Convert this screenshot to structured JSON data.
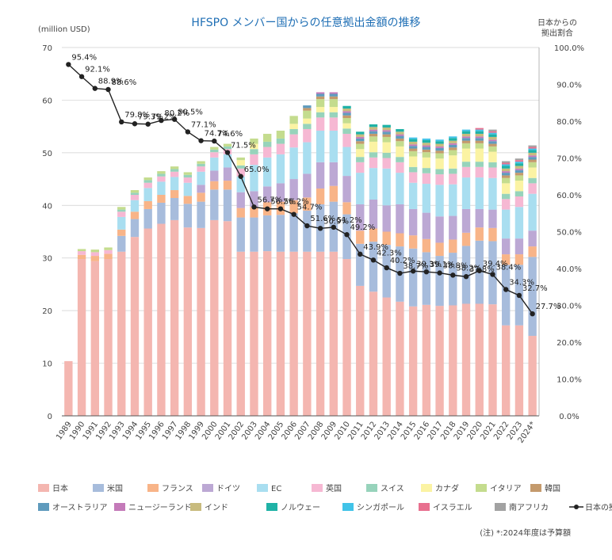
{
  "chart_data": {
    "type": "bar",
    "title": "HFSPO メンバー国からの任意拠出金額の推移",
    "ylabel_left": "(million USD)",
    "ylabel_right_line1": "日本からの",
    "ylabel_right_line2": "拠出割合",
    "ylim": [
      0,
      70
    ],
    "y2lim": [
      0,
      100
    ],
    "yticks": [
      "0",
      "10",
      "20",
      "30",
      "40",
      "50",
      "60",
      "70"
    ],
    "y2ticks": [
      "0.0%",
      "10.0%",
      "20.0%",
      "30.0%",
      "40.0%",
      "50.0%",
      "60.0%",
      "70.0%",
      "80.0%",
      "90.0%",
      "100.0%"
    ],
    "grid": true,
    "legend_position": "bottom",
    "categories": [
      "1989",
      "1990",
      "1991",
      "1992",
      "1993",
      "1994",
      "1995",
      "1996",
      "1997",
      "1998",
      "1999",
      "2000",
      "2001",
      "2002",
      "2003",
      "2004",
      "2005",
      "2006",
      "2007",
      "2008",
      "2009",
      "2010",
      "2011",
      "2012",
      "2013",
      "2014",
      "2015",
      "2016",
      "2017",
      "2018",
      "2019",
      "2020",
      "2021",
      "2022",
      "2023",
      "2024*"
    ],
    "series": [
      {
        "name": "日本",
        "color": "#f4b6b0",
        "values": [
          10.4,
          29.8,
          29.4,
          29.8,
          31.2,
          34.0,
          35.6,
          36.5,
          37.2,
          35.8,
          35.7,
          37.2,
          37.0,
          31.2,
          31.2,
          31.3,
          31.2,
          31.2,
          31.2,
          31.2,
          31.2,
          29.8,
          24.7,
          23.6,
          22.5,
          21.7,
          20.8,
          21.1,
          20.9,
          21.0,
          21.3,
          21.3,
          21.2,
          17.2,
          17.2,
          15.2
        ]
      },
      {
        "name": "米国",
        "color": "#a7bcdc",
        "values": [
          0,
          0,
          0,
          0,
          3.0,
          3.4,
          3.7,
          4.0,
          4.2,
          4.5,
          5.0,
          5.8,
          6.0,
          6.5,
          6.5,
          6.8,
          7.0,
          7.3,
          7.8,
          9.0,
          9.5,
          8.5,
          8.0,
          9.5,
          10.0,
          10.5,
          11.0,
          10.0,
          9.5,
          10.0,
          11.0,
          12.0,
          12.0,
          11.5,
          11.5,
          15.0
        ]
      },
      {
        "name": "フランス",
        "color": "#f8b488",
        "values": [
          0,
          0.8,
          1.0,
          1.0,
          1.2,
          1.4,
          1.5,
          1.5,
          1.5,
          1.5,
          1.7,
          1.6,
          1.7,
          1.8,
          2.0,
          2.5,
          2.5,
          2.5,
          2.5,
          3.0,
          3.0,
          2.3,
          2.5,
          2.5,
          2.5,
          2.5,
          2.5,
          2.5,
          2.5,
          2.5,
          2.5,
          2.5,
          2.5,
          2.0,
          2.0,
          2.0
        ]
      },
      {
        "name": "ドイツ",
        "color": "#bca8d4",
        "values": [
          0,
          0,
          0,
          0,
          0,
          0,
          0,
          0,
          0,
          0,
          1.5,
          2.0,
          2.5,
          3.0,
          3.0,
          3.0,
          3.5,
          4.0,
          4.5,
          5.0,
          4.5,
          5.0,
          5.0,
          5.5,
          5.0,
          5.5,
          5.0,
          5.0,
          5.0,
          4.5,
          4.5,
          3.5,
          3.5,
          3.0,
          3.0,
          3.0
        ]
      },
      {
        "name": "EC",
        "color": "#a9def0",
        "values": [
          0,
          0,
          0,
          0,
          2.4,
          2.2,
          2.5,
          2.5,
          2.5,
          2.5,
          2.5,
          2.5,
          2.5,
          3.0,
          5.0,
          5.5,
          5.5,
          6.0,
          6.0,
          6.0,
          6.0,
          5.5,
          6.0,
          6.0,
          7.0,
          6.0,
          5.0,
          5.5,
          6.0,
          6.0,
          6.0,
          6.0,
          6.0,
          5.5,
          6.0,
          7.0
        ]
      },
      {
        "name": "英国",
        "color": "#f6b8d3",
        "values": [
          0,
          0.7,
          0.7,
          0.7,
          1.0,
          1.0,
          1.0,
          1.0,
          1.0,
          1.0,
          1.0,
          1.0,
          1.0,
          1.5,
          2.0,
          2.0,
          2.0,
          2.5,
          2.5,
          2.5,
          2.5,
          2.5,
          2.0,
          2.0,
          2.0,
          2.0,
          2.0,
          2.0,
          2.0,
          2.0,
          2.0,
          2.0,
          2.0,
          2.0,
          2.0,
          2.0
        ]
      },
      {
        "name": "スイス",
        "color": "#97d3bb",
        "values": [
          0,
          0,
          0,
          0,
          0.4,
          0.4,
          0.5,
          0.5,
          0.5,
          0.5,
          0.5,
          0.5,
          0.5,
          0.6,
          1.0,
          1.0,
          1.0,
          1.0,
          1.0,
          1.0,
          1.0,
          1.0,
          1.0,
          1.0,
          1.0,
          1.0,
          1.0,
          1.0,
          1.0,
          1.0,
          1.0,
          1.0,
          1.0,
          1.0,
          1.0,
          1.0
        ]
      },
      {
        "name": "カナダ",
        "color": "#fbf3a3",
        "values": [
          0,
          0,
          0,
          0,
          0,
          0,
          0,
          0,
          0,
          0,
          0,
          0,
          0,
          1.0,
          1.0,
          0,
          0,
          1.0,
          1.0,
          1.0,
          1.0,
          1.0,
          1.5,
          2.0,
          2.0,
          2.0,
          2.0,
          2.0,
          2.0,
          2.5,
          2.5,
          2.5,
          2.0,
          2.0,
          2.0,
          2.0
        ]
      },
      {
        "name": "イタリア",
        "color": "#c4dc8e",
        "values": [
          0,
          0.4,
          0.5,
          0.5,
          0.5,
          0.5,
          0.5,
          0.5,
          0.5,
          0.5,
          0.5,
          0.5,
          0.5,
          0.5,
          1.0,
          1.5,
          1.5,
          1.5,
          1.5,
          1.5,
          1.5,
          1.0,
          1.0,
          1.0,
          1.0,
          1.0,
          1.0,
          1.0,
          1.0,
          1.0,
          1.0,
          1.0,
          1.0,
          1.0,
          1.0,
          1.0
        ]
      },
      {
        "name": "韓国",
        "color": "#c49a6c",
        "values": [
          0,
          0,
          0,
          0,
          0,
          0,
          0,
          0,
          0,
          0,
          0,
          0,
          0,
          0,
          0,
          0,
          0,
          0,
          0.5,
          0.5,
          0.5,
          0.5,
          0.5,
          0.5,
          0.5,
          0.5,
          0.5,
          0.5,
          0.5,
          0.5,
          0.5,
          0.5,
          0.5,
          0.5,
          0.5,
          0.5
        ]
      },
      {
        "name": "オーストラリア",
        "color": "#5f9bbd",
        "values": [
          0,
          0,
          0,
          0,
          0,
          0,
          0,
          0,
          0,
          0,
          0,
          0,
          0,
          0,
          0,
          0,
          0,
          0,
          0.5,
          0.5,
          0.5,
          0.5,
          0.5,
          0.5,
          0.5,
          0.5,
          0.5,
          0.5,
          0.5,
          0.5,
          0.5,
          0.5,
          0.5,
          0.5,
          0.5,
          0.5
        ]
      },
      {
        "name": "ニュージーランド",
        "color": "#c47ab9",
        "values": [
          0,
          0,
          0,
          0,
          0,
          0,
          0,
          0,
          0,
          0,
          0,
          0,
          0,
          0,
          0,
          0,
          0,
          0,
          0,
          0.3,
          0.3,
          0.3,
          0.3,
          0.3,
          0.3,
          0.3,
          0.3,
          0.3,
          0.3,
          0.3,
          0.3,
          0.3,
          0.3,
          0.3,
          0.3,
          0.3
        ]
      },
      {
        "name": "インド",
        "color": "#c8bb7e",
        "values": [
          0,
          0,
          0,
          0,
          0,
          0,
          0,
          0,
          0,
          0,
          0,
          0,
          0,
          0,
          0,
          0,
          0,
          0,
          0,
          0,
          0,
          0.5,
          0.5,
          0.5,
          0.5,
          0.5,
          0.5,
          0.5,
          0.5,
          0.5,
          0.5,
          0.5,
          0.5,
          0.5,
          0.5,
          0.5
        ]
      },
      {
        "name": "ノルウェー",
        "color": "#1fb2a6",
        "values": [
          0,
          0,
          0,
          0,
          0,
          0,
          0,
          0,
          0,
          0,
          0,
          0,
          0,
          0,
          0,
          0,
          0,
          0,
          0,
          0,
          0,
          0.5,
          0.5,
          0.5,
          0.5,
          0.5,
          0.5,
          0.5,
          0.5,
          0.5,
          0.5,
          0.5,
          0.5,
          0.5,
          0.5,
          0.5
        ]
      },
      {
        "name": "シンガポール",
        "color": "#41c3e8",
        "values": [
          0,
          0,
          0,
          0,
          0,
          0,
          0,
          0,
          0,
          0,
          0,
          0,
          0,
          0,
          0,
          0,
          0,
          0,
          0,
          0,
          0,
          0,
          0,
          0,
          0,
          0,
          0.3,
          0.3,
          0.3,
          0.3,
          0.3,
          0.3,
          0.3,
          0.3,
          0.3,
          0.3
        ]
      },
      {
        "name": "イスラエル",
        "color": "#e8708f",
        "values": [
          0,
          0,
          0,
          0,
          0,
          0,
          0,
          0,
          0,
          0,
          0,
          0,
          0,
          0,
          0,
          0,
          0,
          0,
          0,
          0,
          0,
          0,
          0,
          0,
          0,
          0,
          0,
          0,
          0,
          0,
          0,
          0.3,
          0.3,
          0.3,
          0.3,
          0.3
        ]
      },
      {
        "name": "南アフリカ",
        "color": "#a2a2a2",
        "values": [
          0,
          0,
          0,
          0,
          0,
          0,
          0,
          0,
          0,
          0,
          0,
          0,
          0,
          0,
          0,
          0,
          0,
          0,
          0,
          0,
          0,
          0,
          0,
          0,
          0,
          0,
          0,
          0,
          0,
          0,
          0,
          0,
          0.3,
          0.3,
          0.3,
          0.3
        ]
      }
    ],
    "line_series": {
      "name": "日本の拠出割合",
      "color": "#222222",
      "values": [
        95.4,
        92.1,
        88.9,
        88.6,
        79.8,
        79.3,
        79.2,
        80.2,
        80.5,
        77.1,
        74.7,
        74.6,
        71.5,
        65.0,
        56.7,
        56.2,
        56.2,
        54.7,
        51.6,
        50.9,
        51.2,
        49.2,
        43.9,
        42.3,
        40.2,
        38.7,
        39.3,
        39.1,
        38.8,
        38.2,
        37.8,
        39.4,
        38.4,
        34.3,
        32.7,
        27.7
      ],
      "labels": [
        "95.4%",
        "92.1%",
        "88.9%",
        "88.6%",
        "79.8%",
        "79.3%",
        "79.2%",
        "80.2%",
        "80.5%",
        "77.1%",
        "74.7%",
        "74.6%",
        "71.5%",
        "65.0%",
        "56.7%",
        "56.2%",
        "56.2%",
        "54.7%",
        "51.6%",
        "50.9%",
        "51.2%",
        "49.2%",
        "43.9%",
        "42.3%",
        "40.2%",
        "38.7%",
        "39.3%",
        "39.1%",
        "38.8%",
        "38.2%",
        "37.8%",
        "39.4%",
        "38.4%",
        "34.3%",
        "32.7%",
        "27.7%"
      ]
    },
    "note": "(注) *:2024年度は予算額"
  }
}
